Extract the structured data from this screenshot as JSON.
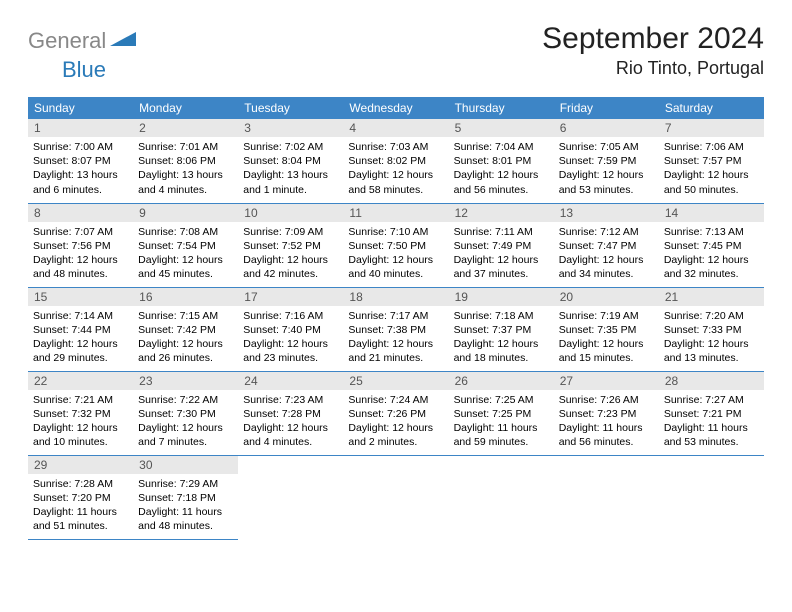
{
  "logo": {
    "text_grey": "General",
    "text_blue": "Blue"
  },
  "title": "September 2024",
  "location": "Rio Tinto, Portugal",
  "colors": {
    "header_bg": "#3d85c6",
    "header_text": "#ffffff",
    "daynum_bg": "#e8e8e8",
    "daynum_text": "#555555",
    "row_divider": "#3d85c6",
    "logo_grey": "#888888",
    "logo_blue": "#2a7ab8",
    "body_text": "#000000",
    "page_bg": "#ffffff"
  },
  "fonts": {
    "title_size_pt": 30,
    "location_size_pt": 18,
    "dayheader_size_pt": 12,
    "daynum_size_pt": 12,
    "body_size_pt": 10.5
  },
  "day_headers": [
    "Sunday",
    "Monday",
    "Tuesday",
    "Wednesday",
    "Thursday",
    "Friday",
    "Saturday"
  ],
  "weeks": [
    [
      {
        "num": "1",
        "sunrise": "7:00 AM",
        "sunset": "8:07 PM",
        "daylight": "13 hours and 6 minutes."
      },
      {
        "num": "2",
        "sunrise": "7:01 AM",
        "sunset": "8:06 PM",
        "daylight": "13 hours and 4 minutes."
      },
      {
        "num": "3",
        "sunrise": "7:02 AM",
        "sunset": "8:04 PM",
        "daylight": "13 hours and 1 minute."
      },
      {
        "num": "4",
        "sunrise": "7:03 AM",
        "sunset": "8:02 PM",
        "daylight": "12 hours and 58 minutes."
      },
      {
        "num": "5",
        "sunrise": "7:04 AM",
        "sunset": "8:01 PM",
        "daylight": "12 hours and 56 minutes."
      },
      {
        "num": "6",
        "sunrise": "7:05 AM",
        "sunset": "7:59 PM",
        "daylight": "12 hours and 53 minutes."
      },
      {
        "num": "7",
        "sunrise": "7:06 AM",
        "sunset": "7:57 PM",
        "daylight": "12 hours and 50 minutes."
      }
    ],
    [
      {
        "num": "8",
        "sunrise": "7:07 AM",
        "sunset": "7:56 PM",
        "daylight": "12 hours and 48 minutes."
      },
      {
        "num": "9",
        "sunrise": "7:08 AM",
        "sunset": "7:54 PM",
        "daylight": "12 hours and 45 minutes."
      },
      {
        "num": "10",
        "sunrise": "7:09 AM",
        "sunset": "7:52 PM",
        "daylight": "12 hours and 42 minutes."
      },
      {
        "num": "11",
        "sunrise": "7:10 AM",
        "sunset": "7:50 PM",
        "daylight": "12 hours and 40 minutes."
      },
      {
        "num": "12",
        "sunrise": "7:11 AM",
        "sunset": "7:49 PM",
        "daylight": "12 hours and 37 minutes."
      },
      {
        "num": "13",
        "sunrise": "7:12 AM",
        "sunset": "7:47 PM",
        "daylight": "12 hours and 34 minutes."
      },
      {
        "num": "14",
        "sunrise": "7:13 AM",
        "sunset": "7:45 PM",
        "daylight": "12 hours and 32 minutes."
      }
    ],
    [
      {
        "num": "15",
        "sunrise": "7:14 AM",
        "sunset": "7:44 PM",
        "daylight": "12 hours and 29 minutes."
      },
      {
        "num": "16",
        "sunrise": "7:15 AM",
        "sunset": "7:42 PM",
        "daylight": "12 hours and 26 minutes."
      },
      {
        "num": "17",
        "sunrise": "7:16 AM",
        "sunset": "7:40 PM",
        "daylight": "12 hours and 23 minutes."
      },
      {
        "num": "18",
        "sunrise": "7:17 AM",
        "sunset": "7:38 PM",
        "daylight": "12 hours and 21 minutes."
      },
      {
        "num": "19",
        "sunrise": "7:18 AM",
        "sunset": "7:37 PM",
        "daylight": "12 hours and 18 minutes."
      },
      {
        "num": "20",
        "sunrise": "7:19 AM",
        "sunset": "7:35 PM",
        "daylight": "12 hours and 15 minutes."
      },
      {
        "num": "21",
        "sunrise": "7:20 AM",
        "sunset": "7:33 PM",
        "daylight": "12 hours and 13 minutes."
      }
    ],
    [
      {
        "num": "22",
        "sunrise": "7:21 AM",
        "sunset": "7:32 PM",
        "daylight": "12 hours and 10 minutes."
      },
      {
        "num": "23",
        "sunrise": "7:22 AM",
        "sunset": "7:30 PM",
        "daylight": "12 hours and 7 minutes."
      },
      {
        "num": "24",
        "sunrise": "7:23 AM",
        "sunset": "7:28 PM",
        "daylight": "12 hours and 4 minutes."
      },
      {
        "num": "25",
        "sunrise": "7:24 AM",
        "sunset": "7:26 PM",
        "daylight": "12 hours and 2 minutes."
      },
      {
        "num": "26",
        "sunrise": "7:25 AM",
        "sunset": "7:25 PM",
        "daylight": "11 hours and 59 minutes."
      },
      {
        "num": "27",
        "sunrise": "7:26 AM",
        "sunset": "7:23 PM",
        "daylight": "11 hours and 56 minutes."
      },
      {
        "num": "28",
        "sunrise": "7:27 AM",
        "sunset": "7:21 PM",
        "daylight": "11 hours and 53 minutes."
      }
    ],
    [
      {
        "num": "29",
        "sunrise": "7:28 AM",
        "sunset": "7:20 PM",
        "daylight": "11 hours and 51 minutes."
      },
      {
        "num": "30",
        "sunrise": "7:29 AM",
        "sunset": "7:18 PM",
        "daylight": "11 hours and 48 minutes."
      },
      null,
      null,
      null,
      null,
      null
    ]
  ],
  "labels": {
    "sunrise_prefix": "Sunrise: ",
    "sunset_prefix": "Sunset: ",
    "daylight_prefix": "Daylight: "
  }
}
